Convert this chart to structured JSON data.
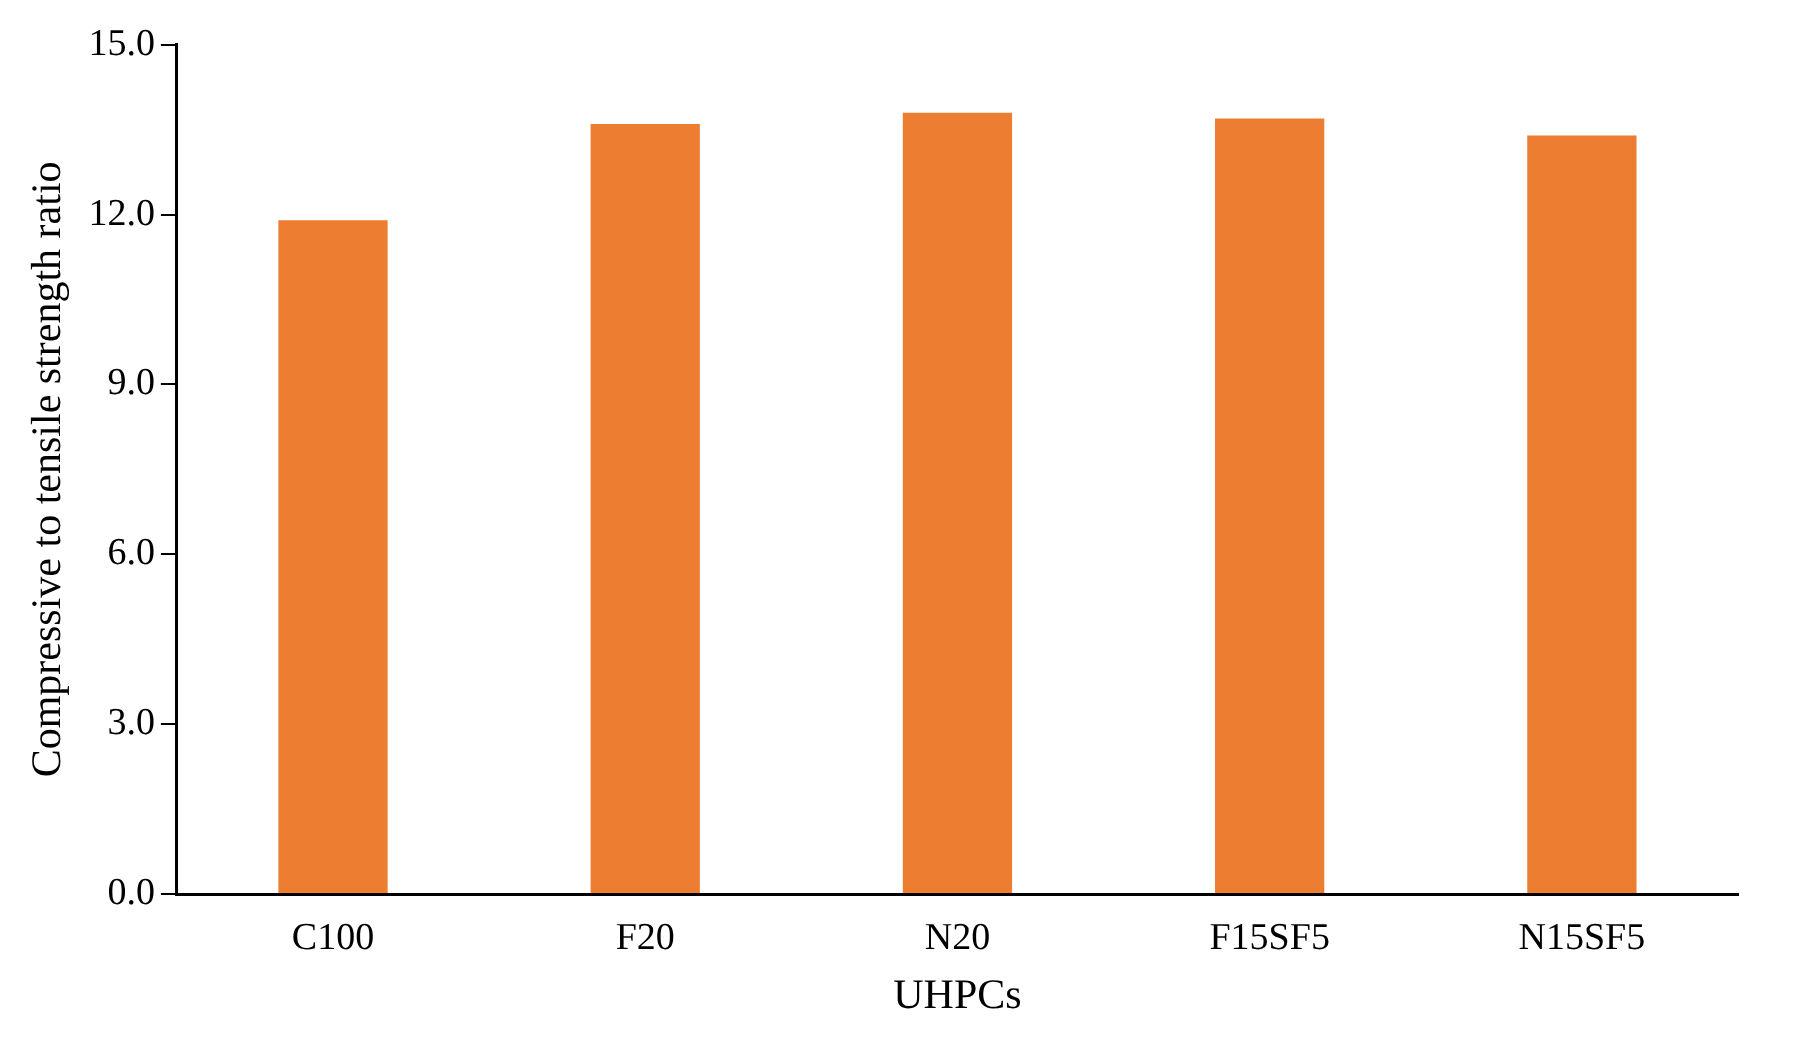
{
  "chart_data": {
    "type": "bar",
    "xlabel": "UHPCs",
    "ylabel": "Compressive to tensile strength ratio",
    "categories": [
      "C100",
      "F20",
      "N20",
      "F15SF5",
      "N15SF5"
    ],
    "values": [
      11.9,
      13.6,
      13.8,
      13.7,
      13.4
    ],
    "color": "#ed7d31",
    "ylim": [
      0,
      15
    ],
    "yticks": [
      {
        "value": 0,
        "label": "0.0"
      },
      {
        "value": 3,
        "label": "3.0"
      },
      {
        "value": 6,
        "label": "6.0"
      },
      {
        "value": 9,
        "label": "9.0"
      },
      {
        "value": 12,
        "label": "12.0"
      },
      {
        "value": 15,
        "label": "15.0"
      }
    ],
    "grid": false,
    "legend": false
  }
}
